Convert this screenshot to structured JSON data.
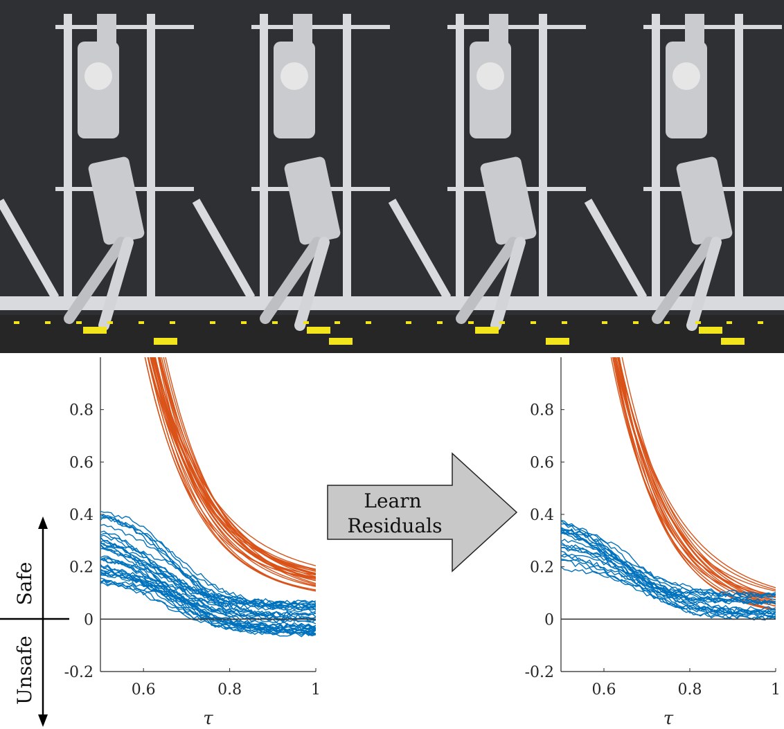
{
  "photo_strip": {
    "frames": [
      {
        "name": "frame-1"
      },
      {
        "name": "frame-2"
      },
      {
        "name": "frame-3"
      },
      {
        "name": "frame-4"
      }
    ],
    "colors": {
      "wall": "#2f3033",
      "floor": "#262626",
      "marker": "#f2e51c",
      "frame_metal": "#d9dade",
      "robot": "#c9cbcf"
    }
  },
  "labels": {
    "safe": "Safe",
    "unsafe": "Unsafe",
    "arrow_line1": "Learn",
    "arrow_line2": "Residuals"
  },
  "chart_data": [
    {
      "type": "line",
      "xlabel": "τ",
      "ylabel": "",
      "xlim": [
        0.5,
        1.0
      ],
      "ylim": [
        -0.2,
        1.0
      ],
      "xticks": [
        "0.6",
        "0.8",
        "1"
      ],
      "yticks": [
        "-0.2",
        "0",
        "0.2",
        "0.4",
        "0.6",
        "0.8"
      ],
      "reference_line_y": 0,
      "groups": [
        {
          "color": "#d95319",
          "count": 26,
          "description_points": "each curve decays from ~1.0 near τ≈0.6 down to a final value near τ=1",
          "start_x_range": [
            0.6,
            0.65
          ],
          "end_y_range": [
            0.07,
            0.15
          ]
        },
        {
          "color": "#0072bd",
          "count": 38,
          "start_y_range": [
            0.14,
            0.44
          ],
          "end_y_range": [
            -0.07,
            0.08
          ]
        }
      ]
    },
    {
      "type": "line",
      "xlabel": "τ",
      "ylabel": "",
      "xlim": [
        0.5,
        1.0
      ],
      "ylim": [
        -0.2,
        1.0
      ],
      "xticks": [
        "0.6",
        "0.8",
        "1"
      ],
      "yticks": [
        "-0.2",
        "0",
        "0.2",
        "0.4",
        "0.6",
        "0.8"
      ],
      "reference_line_y": 0,
      "groups": [
        {
          "color": "#d95319",
          "count": 18,
          "start_x_range": [
            0.61,
            0.64
          ],
          "end_y_range": [
            -0.02,
            0.08
          ]
        },
        {
          "color": "#0072bd",
          "count": 22,
          "start_y_range": [
            0.2,
            0.42
          ],
          "end_y_range": [
            0.0,
            0.1
          ]
        }
      ]
    }
  ]
}
